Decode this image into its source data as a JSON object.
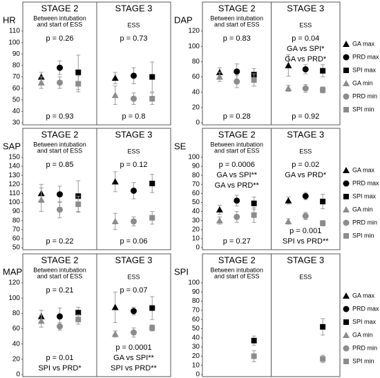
{
  "chart_data": [
    {
      "type": "dot",
      "label": "HR",
      "categories": [
        "STAGE 2",
        "STAGE 3"
      ],
      "category_notes": [
        [
          "Between intubation",
          "and start of ESS"
        ],
        [
          "ESS"
        ]
      ],
      "ylim": [
        30,
        110
      ],
      "yticks": [
        30,
        40,
        50,
        60,
        70,
        80,
        90,
        100,
        110
      ],
      "legend": false,
      "series": [
        {
          "color": "#000000",
          "marker": "triangle",
          "values": [
            70,
            69
          ],
          "errors": [
            4,
            5
          ]
        },
        {
          "color": "#000000",
          "marker": "circle",
          "values": [
            78,
            71
          ],
          "errors": [
            6,
            7
          ]
        },
        {
          "color": "#000000",
          "marker": "square",
          "values": [
            74,
            70
          ],
          "errors": [
            15,
            13
          ]
        },
        {
          "color": "#8c8c8c",
          "marker": "triangle",
          "values": [
            65,
            54
          ],
          "errors": [
            5,
            8
          ]
        },
        {
          "color": "#8c8c8c",
          "marker": "circle",
          "values": [
            65,
            51
          ],
          "errors": [
            5,
            5
          ]
        },
        {
          "color": "#8c8c8c",
          "marker": "square",
          "values": [
            64,
            51
          ],
          "errors": [
            7,
            5
          ]
        }
      ],
      "annotations": [
        {
          "stage": 0,
          "position": "top",
          "lines": [
            "p = 0.26"
          ]
        },
        {
          "stage": 0,
          "position": "bottom",
          "lines": [
            "p = 0.93"
          ]
        },
        {
          "stage": 1,
          "position": "top",
          "lines": [
            "p = 0.73"
          ]
        },
        {
          "stage": 1,
          "position": "bottom",
          "lines": [
            "p = 0.8"
          ]
        }
      ]
    },
    {
      "type": "dot",
      "label": "DAP",
      "categories": [
        "STAGE 2",
        "STAGE 3"
      ],
      "category_notes": [
        [
          "Between intubation",
          "and start of ESS"
        ],
        [
          "ESS"
        ]
      ],
      "ylim": [
        0,
        120
      ],
      "yticks": [
        0,
        20,
        40,
        60,
        80,
        100,
        120
      ],
      "legend": true,
      "series": [
        {
          "name": "GA max",
          "color": "#000000",
          "marker": "triangle",
          "values": [
            66,
            75
          ],
          "errors": [
            6,
            14
          ]
        },
        {
          "name": "PRD max",
          "color": "#000000",
          "marker": "circle",
          "values": [
            67,
            70
          ],
          "errors": [
            10,
            6
          ]
        },
        {
          "name": "SPI max",
          "color": "#000000",
          "marker": "square",
          "values": [
            63,
            68
          ],
          "errors": [
            8,
            8
          ]
        },
        {
          "name": "GA min",
          "color": "#8c8c8c",
          "marker": "triangle",
          "values": [
            60,
            45
          ],
          "errors": [
            6,
            4
          ]
        },
        {
          "name": "PRD min",
          "color": "#8c8c8c",
          "marker": "circle",
          "values": [
            54,
            45
          ],
          "errors": [
            8,
            5
          ]
        },
        {
          "name": "SPI min",
          "color": "#8c8c8c",
          "marker": "square",
          "values": [
            56,
            43
          ],
          "errors": [
            8,
            4
          ]
        }
      ],
      "annotations": [
        {
          "stage": 0,
          "position": "top",
          "lines": [
            "p = 0.83"
          ]
        },
        {
          "stage": 0,
          "position": "bottom",
          "lines": [
            "p = 0.28"
          ]
        },
        {
          "stage": 1,
          "position": "top",
          "lines": [
            "p = 0.04",
            "GA vs SPI*",
            "GA vs PRD*"
          ]
        },
        {
          "stage": 1,
          "position": "bottom",
          "lines": [
            "p = 0.92"
          ]
        }
      ]
    },
    {
      "type": "dot",
      "label": "SAP",
      "categories": [
        "STAGE 2",
        "STAGE 3"
      ],
      "category_notes": [
        [
          "Between intubation",
          "and start of ESS"
        ],
        [
          "ESS"
        ]
      ],
      "ylim": [
        50,
        150
      ],
      "yticks": [
        50,
        60,
        70,
        80,
        90,
        100,
        110,
        120,
        130,
        140,
        150
      ],
      "legend": false,
      "series": [
        {
          "color": "#000000",
          "marker": "triangle",
          "values": [
            110,
            123
          ],
          "errors": [
            10,
            11
          ]
        },
        {
          "color": "#000000",
          "marker": "circle",
          "values": [
            109,
            113
          ],
          "errors": [
            9,
            9
          ]
        },
        {
          "color": "#000000",
          "marker": "square",
          "values": [
            107,
            121
          ],
          "errors": [
            17,
            10
          ]
        },
        {
          "color": "#8c8c8c",
          "marker": "triangle",
          "values": [
            103,
            79
          ],
          "errors": [
            13,
            9
          ]
        },
        {
          "color": "#8c8c8c",
          "marker": "circle",
          "values": [
            92,
            79
          ],
          "errors": [
            9,
            5
          ]
        },
        {
          "color": "#8c8c8c",
          "marker": "square",
          "values": [
            98,
            83
          ],
          "errors": [
            9,
            7
          ]
        }
      ],
      "annotations": [
        {
          "stage": 0,
          "position": "top",
          "lines": [
            "p = 0.85"
          ]
        },
        {
          "stage": 0,
          "position": "bottom",
          "lines": [
            "p = 0.22"
          ]
        },
        {
          "stage": 1,
          "position": "top",
          "lines": [
            "p = 0.12"
          ]
        },
        {
          "stage": 1,
          "position": "bottom",
          "lines": [
            "p = 0.06"
          ]
        }
      ]
    },
    {
      "type": "dot",
      "label": "SE",
      "categories": [
        "STAGE 2",
        "STAGE 3"
      ],
      "category_notes": [
        [
          "Between intubation",
          "and start of ESS"
        ],
        [
          "ESS"
        ]
      ],
      "ylim": [
        0,
        100
      ],
      "yticks": [
        0,
        10,
        20,
        30,
        40,
        50,
        60,
        70,
        80,
        90,
        100
      ],
      "legend": true,
      "series": [
        {
          "name": "GA max",
          "color": "#000000",
          "marker": "triangle",
          "values": [
            42,
            52
          ],
          "errors": [
            5,
            4
          ]
        },
        {
          "name": "PRD max",
          "color": "#000000",
          "marker": "circle",
          "values": [
            52,
            57
          ],
          "errors": [
            6,
            4
          ]
        },
        {
          "name": "SPI max",
          "color": "#000000",
          "marker": "square",
          "values": [
            49,
            51
          ],
          "errors": [
            7,
            8
          ]
        },
        {
          "name": "GA min",
          "color": "#8c8c8c",
          "marker": "triangle",
          "values": [
            30,
            29
          ],
          "errors": [
            4,
            3
          ]
        },
        {
          "name": "PRD min",
          "color": "#8c8c8c",
          "marker": "circle",
          "values": [
            34,
            35
          ],
          "errors": [
            6,
            4
          ]
        },
        {
          "name": "SPI min",
          "color": "#8c8c8c",
          "marker": "square",
          "values": [
            36,
            27
          ],
          "errors": [
            8,
            3
          ]
        }
      ],
      "annotations": [
        {
          "stage": 0,
          "position": "top",
          "lines": [
            "p = 0.0006",
            "GA vs SPI**",
            "GA vs PRD**"
          ]
        },
        {
          "stage": 0,
          "position": "bottom",
          "lines": [
            "p = 0.27"
          ]
        },
        {
          "stage": 1,
          "position": "top",
          "lines": [
            "p = 0.02",
            "GA vs PRD*"
          ]
        },
        {
          "stage": 1,
          "position": "bottom",
          "lines": [
            "p = 0.001",
            "SPI vs PRD**"
          ]
        }
      ]
    },
    {
      "type": "dot",
      "label": "MAP",
      "categories": [
        "STAGE 2",
        "STAGE 3"
      ],
      "category_notes": [
        [
          "Between intubation",
          "and start of ESS"
        ],
        [
          "ESS"
        ]
      ],
      "ylim": [
        0,
        120
      ],
      "yticks": [
        0,
        20,
        40,
        60,
        80,
        100,
        120
      ],
      "legend": false,
      "series": [
        {
          "color": "#000000",
          "marker": "triangle",
          "values": [
            76,
            88
          ],
          "errors": [
            8,
            20
          ]
        },
        {
          "color": "#000000",
          "marker": "circle",
          "values": [
            76,
            83
          ],
          "errors": [
            11,
            5
          ]
        },
        {
          "color": "#000000",
          "marker": "square",
          "values": [
            81,
            87
          ],
          "errors": [
            7,
            15
          ]
        },
        {
          "color": "#8c8c8c",
          "marker": "triangle",
          "values": [
            70,
            53
          ],
          "errors": [
            8,
            4
          ]
        },
        {
          "color": "#8c8c8c",
          "marker": "circle",
          "values": [
            63,
            55
          ],
          "errors": [
            5,
            6
          ]
        },
        {
          "color": "#8c8c8c",
          "marker": "square",
          "values": [
            72,
            61
          ],
          "errors": [
            6,
            4
          ]
        }
      ],
      "annotations": [
        {
          "stage": 0,
          "position": "top",
          "lines": [
            "p = 0.21"
          ]
        },
        {
          "stage": 0,
          "position": "bottom",
          "lines": [
            "p = 0.01",
            "SPI vs PRD*"
          ]
        },
        {
          "stage": 1,
          "position": "top",
          "lines": [
            "p = 0.07"
          ]
        },
        {
          "stage": 1,
          "position": "bottom",
          "lines": [
            "p = 0.0001",
            "GA vs SPI**",
            "SPI vs PRD**"
          ]
        }
      ]
    },
    {
      "type": "dot",
      "label": "SPI",
      "categories": [
        "STAGE 2",
        "STAGE 3"
      ],
      "category_notes": [
        [
          "Between intubation",
          "and start of ESS"
        ],
        [
          "ESS"
        ]
      ],
      "ylim": [
        0,
        100
      ],
      "yticks": [
        0,
        10,
        20,
        30,
        40,
        50,
        60,
        70,
        80,
        90,
        100
      ],
      "legend": true,
      "series": [
        {
          "name": "GA max",
          "color": "#000000",
          "marker": "triangle",
          "values": [
            null,
            null
          ],
          "errors": [
            null,
            null
          ]
        },
        {
          "name": "PRD max",
          "color": "#000000",
          "marker": "circle",
          "values": [
            null,
            null
          ],
          "errors": [
            null,
            null
          ]
        },
        {
          "name": "SPI max",
          "color": "#000000",
          "marker": "square",
          "values": [
            37,
            52
          ],
          "errors": [
            5,
            9
          ]
        },
        {
          "name": "GA min",
          "color": "#8c8c8c",
          "marker": "triangle",
          "values": [
            null,
            null
          ],
          "errors": [
            null,
            null
          ]
        },
        {
          "name": "PRD min",
          "color": "#8c8c8c",
          "marker": "circle",
          "values": [
            null,
            null
          ],
          "errors": [
            null,
            null
          ]
        },
        {
          "name": "SPI min",
          "color": "#8c8c8c",
          "marker": "square",
          "values": [
            20,
            17
          ],
          "errors": [
            6,
            4
          ]
        }
      ],
      "annotations": []
    }
  ]
}
